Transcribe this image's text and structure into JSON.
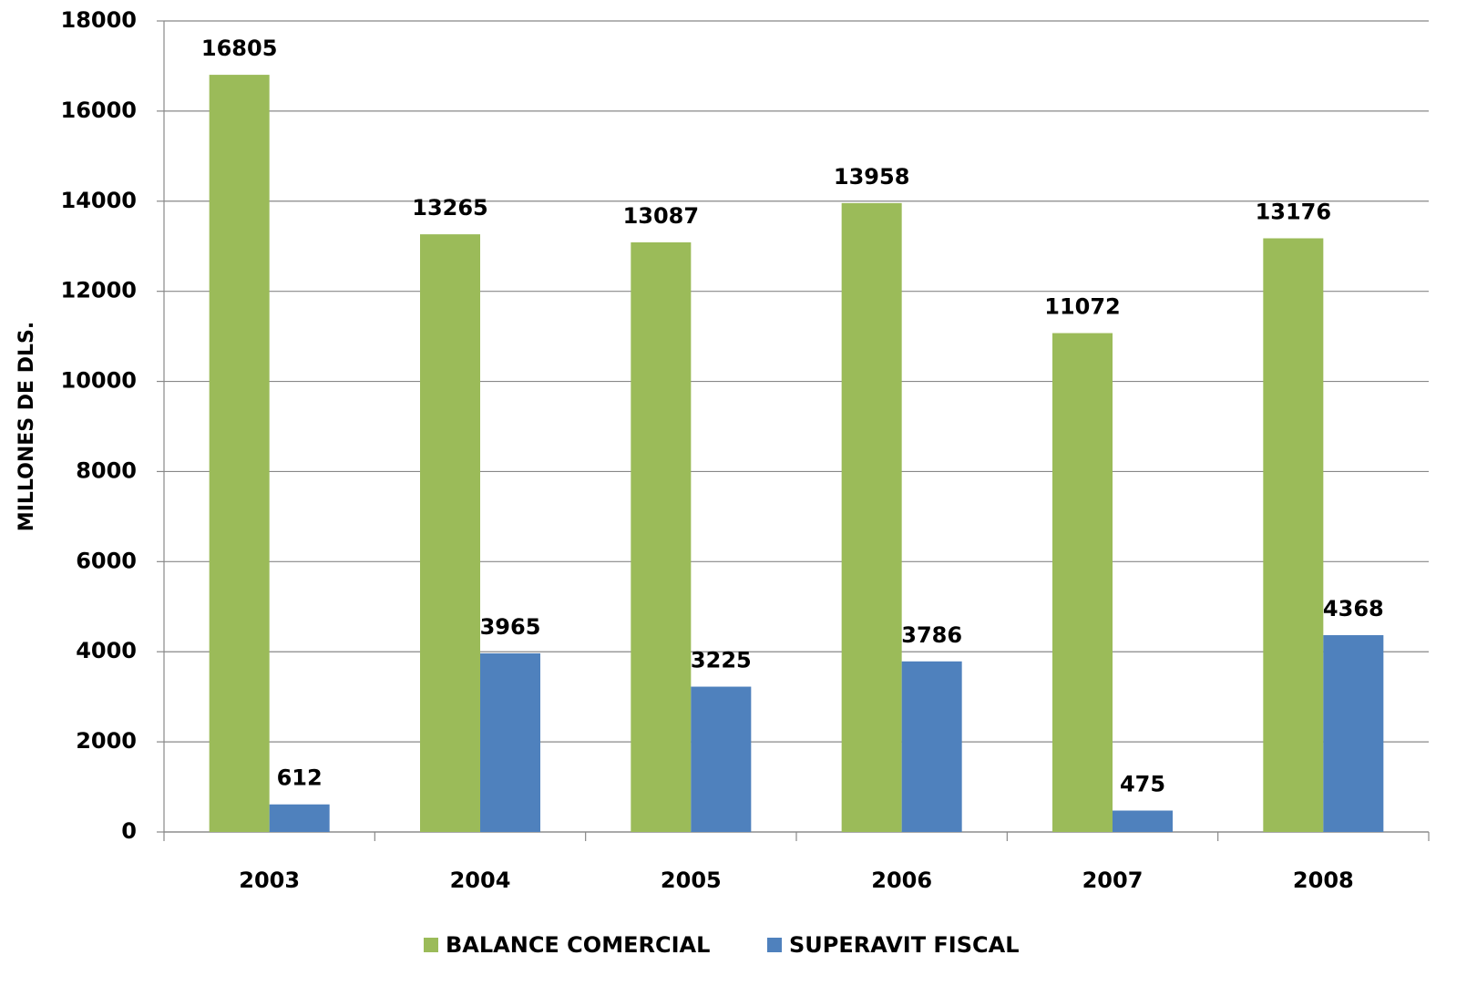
{
  "chart_data": {
    "type": "bar",
    "y_label": "MILLONES DE DLS.",
    "categories": [
      "2003",
      "2004",
      "2005",
      "2006",
      "2007",
      "2008"
    ],
    "series": [
      {
        "name": "BALANCE COMERCIAL",
        "color": "#9bbb59",
        "values": [
          16805,
          13265,
          13087,
          13958,
          11072,
          13176
        ]
      },
      {
        "name": "SUPERAVIT FISCAL",
        "color": "#4f81bd",
        "values": [
          612,
          3965,
          3225,
          3786,
          475,
          4368
        ]
      }
    ],
    "ylim": [
      0,
      18000
    ],
    "yticks": [
      0,
      2000,
      4000,
      6000,
      8000,
      10000,
      12000,
      14000,
      16000,
      18000
    ],
    "grid": true,
    "legend": "bottom"
  }
}
